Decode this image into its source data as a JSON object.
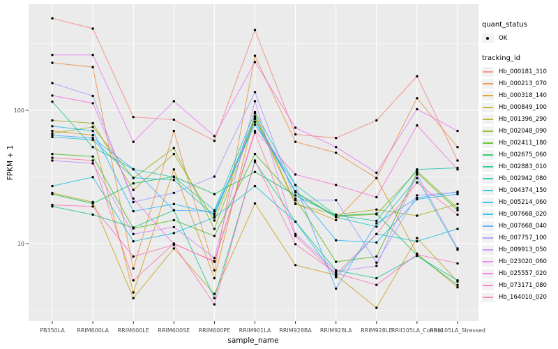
{
  "style": {
    "panel_bg": "#EBEBEB",
    "grid_color": "#FFFFFF",
    "axis_text_color": "#4D4D4D",
    "title_color": "#000000",
    "legend_key_bg": "#F2F2F2",
    "point_color": "#000000",
    "line_opacity": 0.75
  },
  "legend": {
    "quant_status_title": "quant_status",
    "quant_status_items": [
      {
        "label": "OK",
        "symbol": "point"
      }
    ],
    "tracking_title": "tracking_id"
  },
  "chart_data": {
    "type": "line",
    "title": "",
    "xlabel": "sample_name",
    "ylabel": "FPKM + 1",
    "y_scale": "log10",
    "y_major_ticks": [
      10,
      100
    ],
    "y_minor_ticks": [
      3.162,
      31.623,
      316.228
    ],
    "ylim": [
      2.6,
      625
    ],
    "grid": true,
    "legend_position": "right",
    "marker": "black point",
    "categories": [
      "PB350LA",
      "RRIM600LA",
      "RRIM600LE",
      "RRIM600SE",
      "RRIM600PE",
      "RRIM901LA",
      "RRIM928BA",
      "RRIM928LA",
      "RRIM928LE",
      "RRII105LA_Control",
      "RRII105LA_Stressed"
    ],
    "series": [
      {
        "name": "Hb_000181_310",
        "color": "#F8766D",
        "values": [
          490,
          410,
          89,
          85,
          59,
          400,
          66,
          62,
          84,
          180,
          42
        ]
      },
      {
        "name": "Hb_000213_070",
        "color": "#EA8331",
        "values": [
          227,
          211,
          6.5,
          70,
          6.3,
          256,
          58,
          48,
          31,
          123,
          53
        ]
      },
      {
        "name": "Hb_000318_140",
        "color": "#D89000",
        "values": [
          70,
          65,
          4.3,
          36,
          5.5,
          95,
          20,
          15,
          31,
          8.4,
          4.7
        ]
      },
      {
        "name": "Hb_000849_100",
        "color": "#C09B00",
        "values": [
          24,
          20.5,
          3.9,
          9.2,
          4.2,
          20,
          6.9,
          5.8,
          3.3,
          11,
          5.2
        ]
      },
      {
        "name": "Hb_001396_290",
        "color": "#A3A500",
        "values": [
          84,
          80,
          25.3,
          47,
          14.9,
          88,
          19.8,
          16.5,
          18,
          16.2,
          19.8
        ]
      },
      {
        "name": "Hb_002048_090",
        "color": "#7CAE00",
        "values": [
          67,
          75,
          31,
          52,
          12.9,
          86,
          24.5,
          16,
          16.6,
          35,
          18.5
        ]
      },
      {
        "name": "Hb_002411_180",
        "color": "#39B600",
        "values": [
          47,
          45,
          13,
          15,
          11.4,
          47,
          21.8,
          7.3,
          8,
          34,
          17.8
        ]
      },
      {
        "name": "Hb_002675_060",
        "color": "#00BB4E",
        "values": [
          23.5,
          20,
          28.3,
          31.8,
          23.5,
          34.5,
          23,
          16.2,
          16.8,
          8.2,
          4.9
        ]
      },
      {
        "name": "Hb_002883_010",
        "color": "#00BF7D",
        "values": [
          19,
          16.5,
          13.2,
          17.8,
          3.9,
          41,
          14.6,
          6.3,
          5.5,
          8.1,
          5.3
        ]
      },
      {
        "name": "Hb_002942_080",
        "color": "#00C1A3",
        "values": [
          116,
          53,
          36,
          31.5,
          17.8,
          97,
          27.5,
          16.3,
          14.8,
          36,
          37
        ]
      },
      {
        "name": "Hb_004374_150",
        "color": "#00BFC4",
        "values": [
          63,
          60,
          31.2,
          30,
          16.2,
          90,
          24.2,
          15.8,
          13.4,
          31,
          9
        ]
      },
      {
        "name": "Hb_005214_060",
        "color": "#00BAE0",
        "values": [
          27,
          31.5,
          10.4,
          12,
          15.7,
          27,
          14.6,
          5.6,
          11.8,
          10.4,
          12.9
        ]
      },
      {
        "name": "Hb_007668_020",
        "color": "#00B0F6",
        "values": [
          76,
          70,
          17.5,
          19.8,
          16.8,
          82,
          24.8,
          10.6,
          10.2,
          21.5,
          23.5
        ]
      },
      {
        "name": "Hb_007668_040",
        "color": "#35A2FF",
        "values": [
          65,
          62,
          36.2,
          17.8,
          17.5,
          78,
          27.5,
          4.6,
          14.2,
          22,
          24.5
        ]
      },
      {
        "name": "Hb_007757_100",
        "color": "#9590FF",
        "values": [
          160,
          128,
          20.5,
          24,
          31.8,
          137,
          21.2,
          21.2,
          7.2,
          23,
          24.2
        ]
      },
      {
        "name": "Hb_009913_050",
        "color": "#C77CFF",
        "values": [
          42,
          40,
          11.8,
          13.3,
          7.8,
          117,
          11.8,
          6.2,
          6.8,
          33,
          9.2
        ]
      },
      {
        "name": "Hb_023020_060",
        "color": "#E76BF3",
        "values": [
          260,
          260,
          58,
          117,
          64,
          230,
          74,
          53,
          34,
          102,
          70
        ]
      },
      {
        "name": "Hb_025557_020",
        "color": "#FA62DB",
        "values": [
          129,
          113,
          21.8,
          9.9,
          7.4,
          70,
          33,
          27.5,
          22.3,
          77,
          36
        ]
      },
      {
        "name": "Hb_073171_080",
        "color": "#FF62BC",
        "values": [
          19.5,
          19,
          8,
          9.8,
          3.5,
          42,
          9.9,
          6,
          4.9,
          8.3,
          7.1
        ]
      },
      {
        "name": "Hb_164010_020",
        "color": "#FF6A98",
        "values": [
          44,
          42,
          5.3,
          10,
          7.3,
          68,
          11.4,
          5.9,
          11.8,
          28.7,
          16.5
        ]
      }
    ]
  }
}
